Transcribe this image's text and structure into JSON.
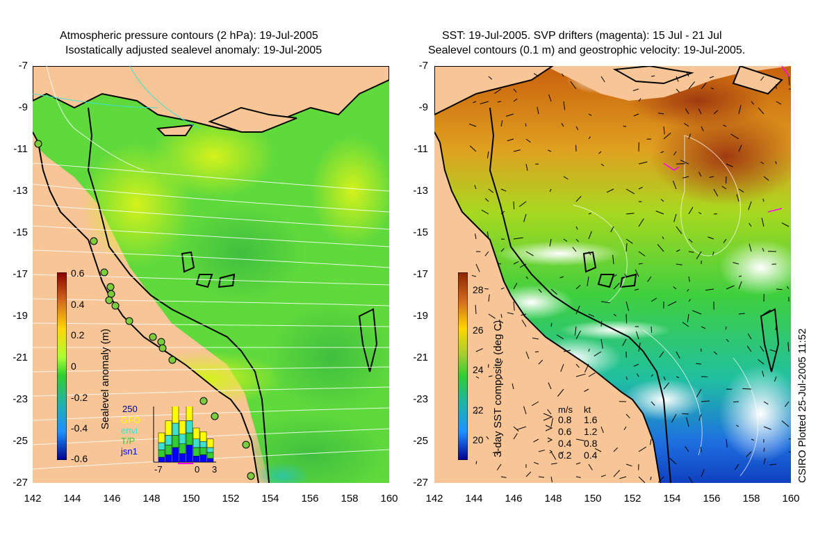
{
  "left_panel": {
    "title_line1": "Atmospheric pressure contours (2 hPa): 19-Jul-2005",
    "title_line2": "Isostatically adjusted sealevel anomaly: 19-Jul-2005",
    "colorbar": {
      "label": "Sealevel anomaly (m)",
      "ticks": [
        "0.6",
        "0.4",
        "0.2",
        "0",
        "-0.2",
        "-0.4",
        "-0.6"
      ],
      "colors": [
        "#8b0000",
        "#d2691e",
        "#ffd700",
        "#adff2f",
        "#32cd32",
        "#20b2aa",
        "#1e90ff",
        "#00008b"
      ]
    },
    "histogram": {
      "ymax_label": "250",
      "series_labels": [
        "GFO",
        "envi",
        "T/P",
        "jsn1"
      ],
      "series_colors": [
        "#ffff00",
        "#40e0d0",
        "#32cd32",
        "#0000ff"
      ],
      "x_ticks": [
        "-7",
        "0",
        "3"
      ],
      "stacks": [
        [
          40,
          30,
          30,
          20
        ],
        [
          60,
          40,
          40,
          30
        ],
        [
          70,
          50,
          50,
          60
        ],
        [
          55,
          40,
          40,
          35
        ],
        [
          60,
          50,
          50,
          70
        ],
        [
          45,
          35,
          35,
          25
        ],
        [
          40,
          25,
          30,
          30
        ],
        [
          35,
          20,
          25,
          15
        ]
      ]
    }
  },
  "right_panel": {
    "title_line1": "SST: 19-Jul-2005. SVP drifters (magenta): 15 Jul - 21 Jul",
    "title_line2": "Sealevel contours (0.1 m) and geostrophic velocity: 19-Jul-2005.",
    "colorbar": {
      "label": "3-day SST composite (deg C)",
      "ticks": [
        "28",
        "26",
        "24",
        "22",
        "20"
      ],
      "colors": [
        "#8b2500",
        "#d2691e",
        "#ffd700",
        "#9acd32",
        "#32cd32",
        "#20b2aa",
        "#1e90ff",
        "#00008b"
      ]
    },
    "velocity_legend": {
      "header_ms": "m/s",
      "header_kt": "kt",
      "rows": [
        {
          "ms": "0.8",
          "kt": "1.6"
        },
        {
          "ms": "0.6",
          "kt": "1.2"
        },
        {
          "ms": "0.4",
          "kt": "0.8"
        },
        {
          "ms": "0.2",
          "kt": "0.4"
        }
      ]
    }
  },
  "axes": {
    "lat_ticks": [
      "-7",
      "-9",
      "-11",
      "-13",
      "-15",
      "-17",
      "-19",
      "-21",
      "-23",
      "-25",
      "-27"
    ],
    "lon_ticks": [
      "142",
      "144",
      "146",
      "148",
      "150",
      "152",
      "154",
      "156",
      "158",
      "160"
    ]
  },
  "credit": "CSIRO Plotted 25-Jul-2005 11:52",
  "colors": {
    "land": "#f7c596",
    "coast": "#000000",
    "contour": "#ffffff",
    "tide_gauge": "#7ccd3c",
    "drifter": "#ff00ff"
  }
}
